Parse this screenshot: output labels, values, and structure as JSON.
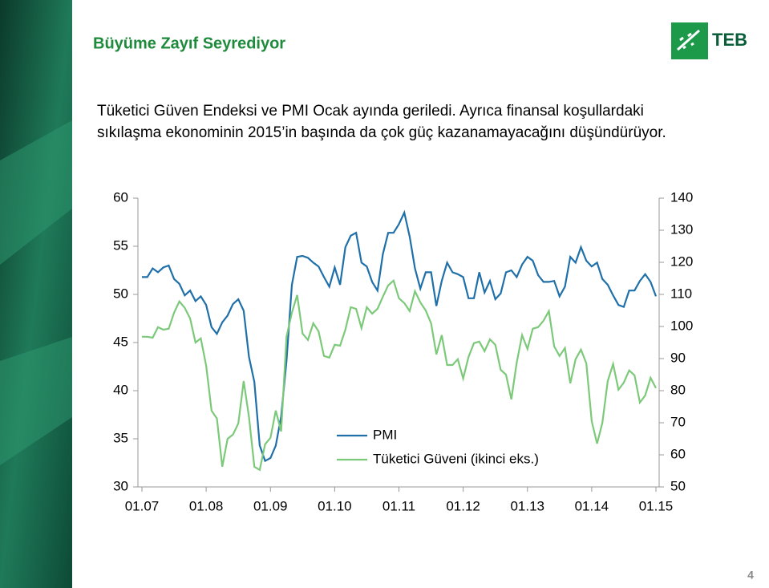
{
  "header": {
    "title": "Büyüme Zayıf Seyrediyor",
    "logo": "TEB"
  },
  "body": {
    "lines": [
      "Tüketici Güven Endeksi ve PMI Ocak ayında geriledi. Ayrıca finansal koşullardaki",
      "sıkılaşma ekonominin 2015’in başında da çok güç kazanamayacağını düşündürüyor."
    ]
  },
  "page_number": "4",
  "chart_data": {
    "type": "line",
    "categories": [
      "01.07",
      null,
      null,
      null,
      null,
      null,
      null,
      null,
      null,
      null,
      null,
      null,
      "01.08",
      null,
      null,
      null,
      null,
      null,
      null,
      null,
      null,
      null,
      null,
      null,
      "01.09",
      null,
      null,
      null,
      null,
      null,
      null,
      null,
      null,
      null,
      null,
      null,
      "01.10",
      null,
      null,
      null,
      null,
      null,
      null,
      null,
      null,
      null,
      null,
      null,
      "01.11",
      null,
      null,
      null,
      null,
      null,
      null,
      null,
      null,
      null,
      null,
      null,
      "01.12",
      null,
      null,
      null,
      null,
      null,
      null,
      null,
      null,
      null,
      null,
      null,
      "01.13",
      null,
      null,
      null,
      null,
      null,
      null,
      null,
      null,
      null,
      null,
      null,
      "01.14",
      null,
      null,
      null,
      null,
      null,
      null,
      null,
      null,
      null,
      null,
      null,
      "01.15"
    ],
    "series": [
      {
        "name": "PMI",
        "color": "#1f6fa8",
        "values": [
          51.8,
          51.8,
          52.7,
          52.3,
          52.8,
          53.0,
          51.6,
          51.1,
          49.9,
          50.4,
          49.3,
          49.8,
          48.9,
          46.6,
          45.9,
          47.1,
          47.8,
          49.0,
          49.5,
          48.3,
          43.5,
          40.9,
          34.3,
          32.7,
          33.0,
          34.3,
          37.3,
          43.1,
          51.0,
          53.9,
          54.0,
          53.8,
          53.3,
          52.9,
          51.8,
          50.8,
          52.8,
          51.0,
          54.9,
          56.1,
          56.4,
          53.3,
          52.9,
          51.3,
          50.4,
          54.2,
          56.4,
          56.4,
          57.3,
          58.5,
          56.0,
          52.7,
          50.6,
          52.3,
          52.3,
          48.8,
          51.4,
          53.3,
          52.3,
          52.1,
          51.8,
          49.6,
          49.6,
          52.3,
          50.2,
          51.4,
          49.5,
          50.1,
          52.3,
          52.5,
          51.8,
          53.1,
          53.9,
          53.5,
          52.0,
          51.3,
          51.3,
          51.4,
          49.8,
          50.8,
          53.9,
          53.3,
          54.9,
          53.5,
          52.9,
          53.3,
          51.6,
          51.0,
          49.9,
          48.9,
          48.7,
          50.4,
          50.4,
          51.4,
          52.1,
          51.3,
          49.8
        ]
      },
      {
        "name": "Tüketici Güveni (ikinci eks.)",
        "color": "#7cc97a",
        "axis": "y2",
        "values": [
          96.8,
          96.8,
          96.5,
          99.8,
          99.0,
          99.3,
          104.3,
          107.8,
          105.8,
          102.5,
          95.0,
          96.3,
          87.8,
          73.8,
          71.3,
          56.3,
          65.0,
          66.3,
          69.8,
          83.0,
          71.8,
          56.3,
          55.3,
          63.3,
          65.3,
          73.8,
          67.3,
          96.8,
          104.3,
          109.8,
          97.8,
          95.8,
          101.0,
          98.5,
          90.8,
          90.3,
          94.3,
          94.0,
          99.0,
          106.0,
          105.5,
          99.5,
          106.0,
          104.0,
          105.5,
          109.3,
          112.8,
          114.3,
          108.8,
          107.3,
          104.8,
          111.0,
          107.5,
          105.0,
          101.0,
          91.3,
          97.3,
          88.0,
          88.0,
          89.8,
          83.8,
          90.5,
          94.8,
          95.3,
          92.3,
          96.0,
          94.3,
          86.5,
          85.0,
          77.3,
          88.8,
          97.3,
          93.0,
          99.3,
          99.8,
          101.8,
          104.8,
          93.8,
          90.8,
          93.3,
          82.3,
          89.8,
          92.8,
          88.5,
          70.5,
          63.5,
          70.0,
          83.0,
          88.3,
          80.3,
          82.5,
          86.3,
          84.8,
          76.3,
          78.5,
          84.0,
          80.8
        ]
      }
    ],
    "ylim": [
      30,
      60
    ],
    "yticks": [
      30,
      35,
      40,
      45,
      50,
      55,
      60
    ],
    "y2lim": [
      50,
      140
    ],
    "y2ticks": [
      50,
      60,
      70,
      80,
      90,
      100,
      110,
      120,
      130,
      140
    ],
    "legend": "bottom-center"
  }
}
